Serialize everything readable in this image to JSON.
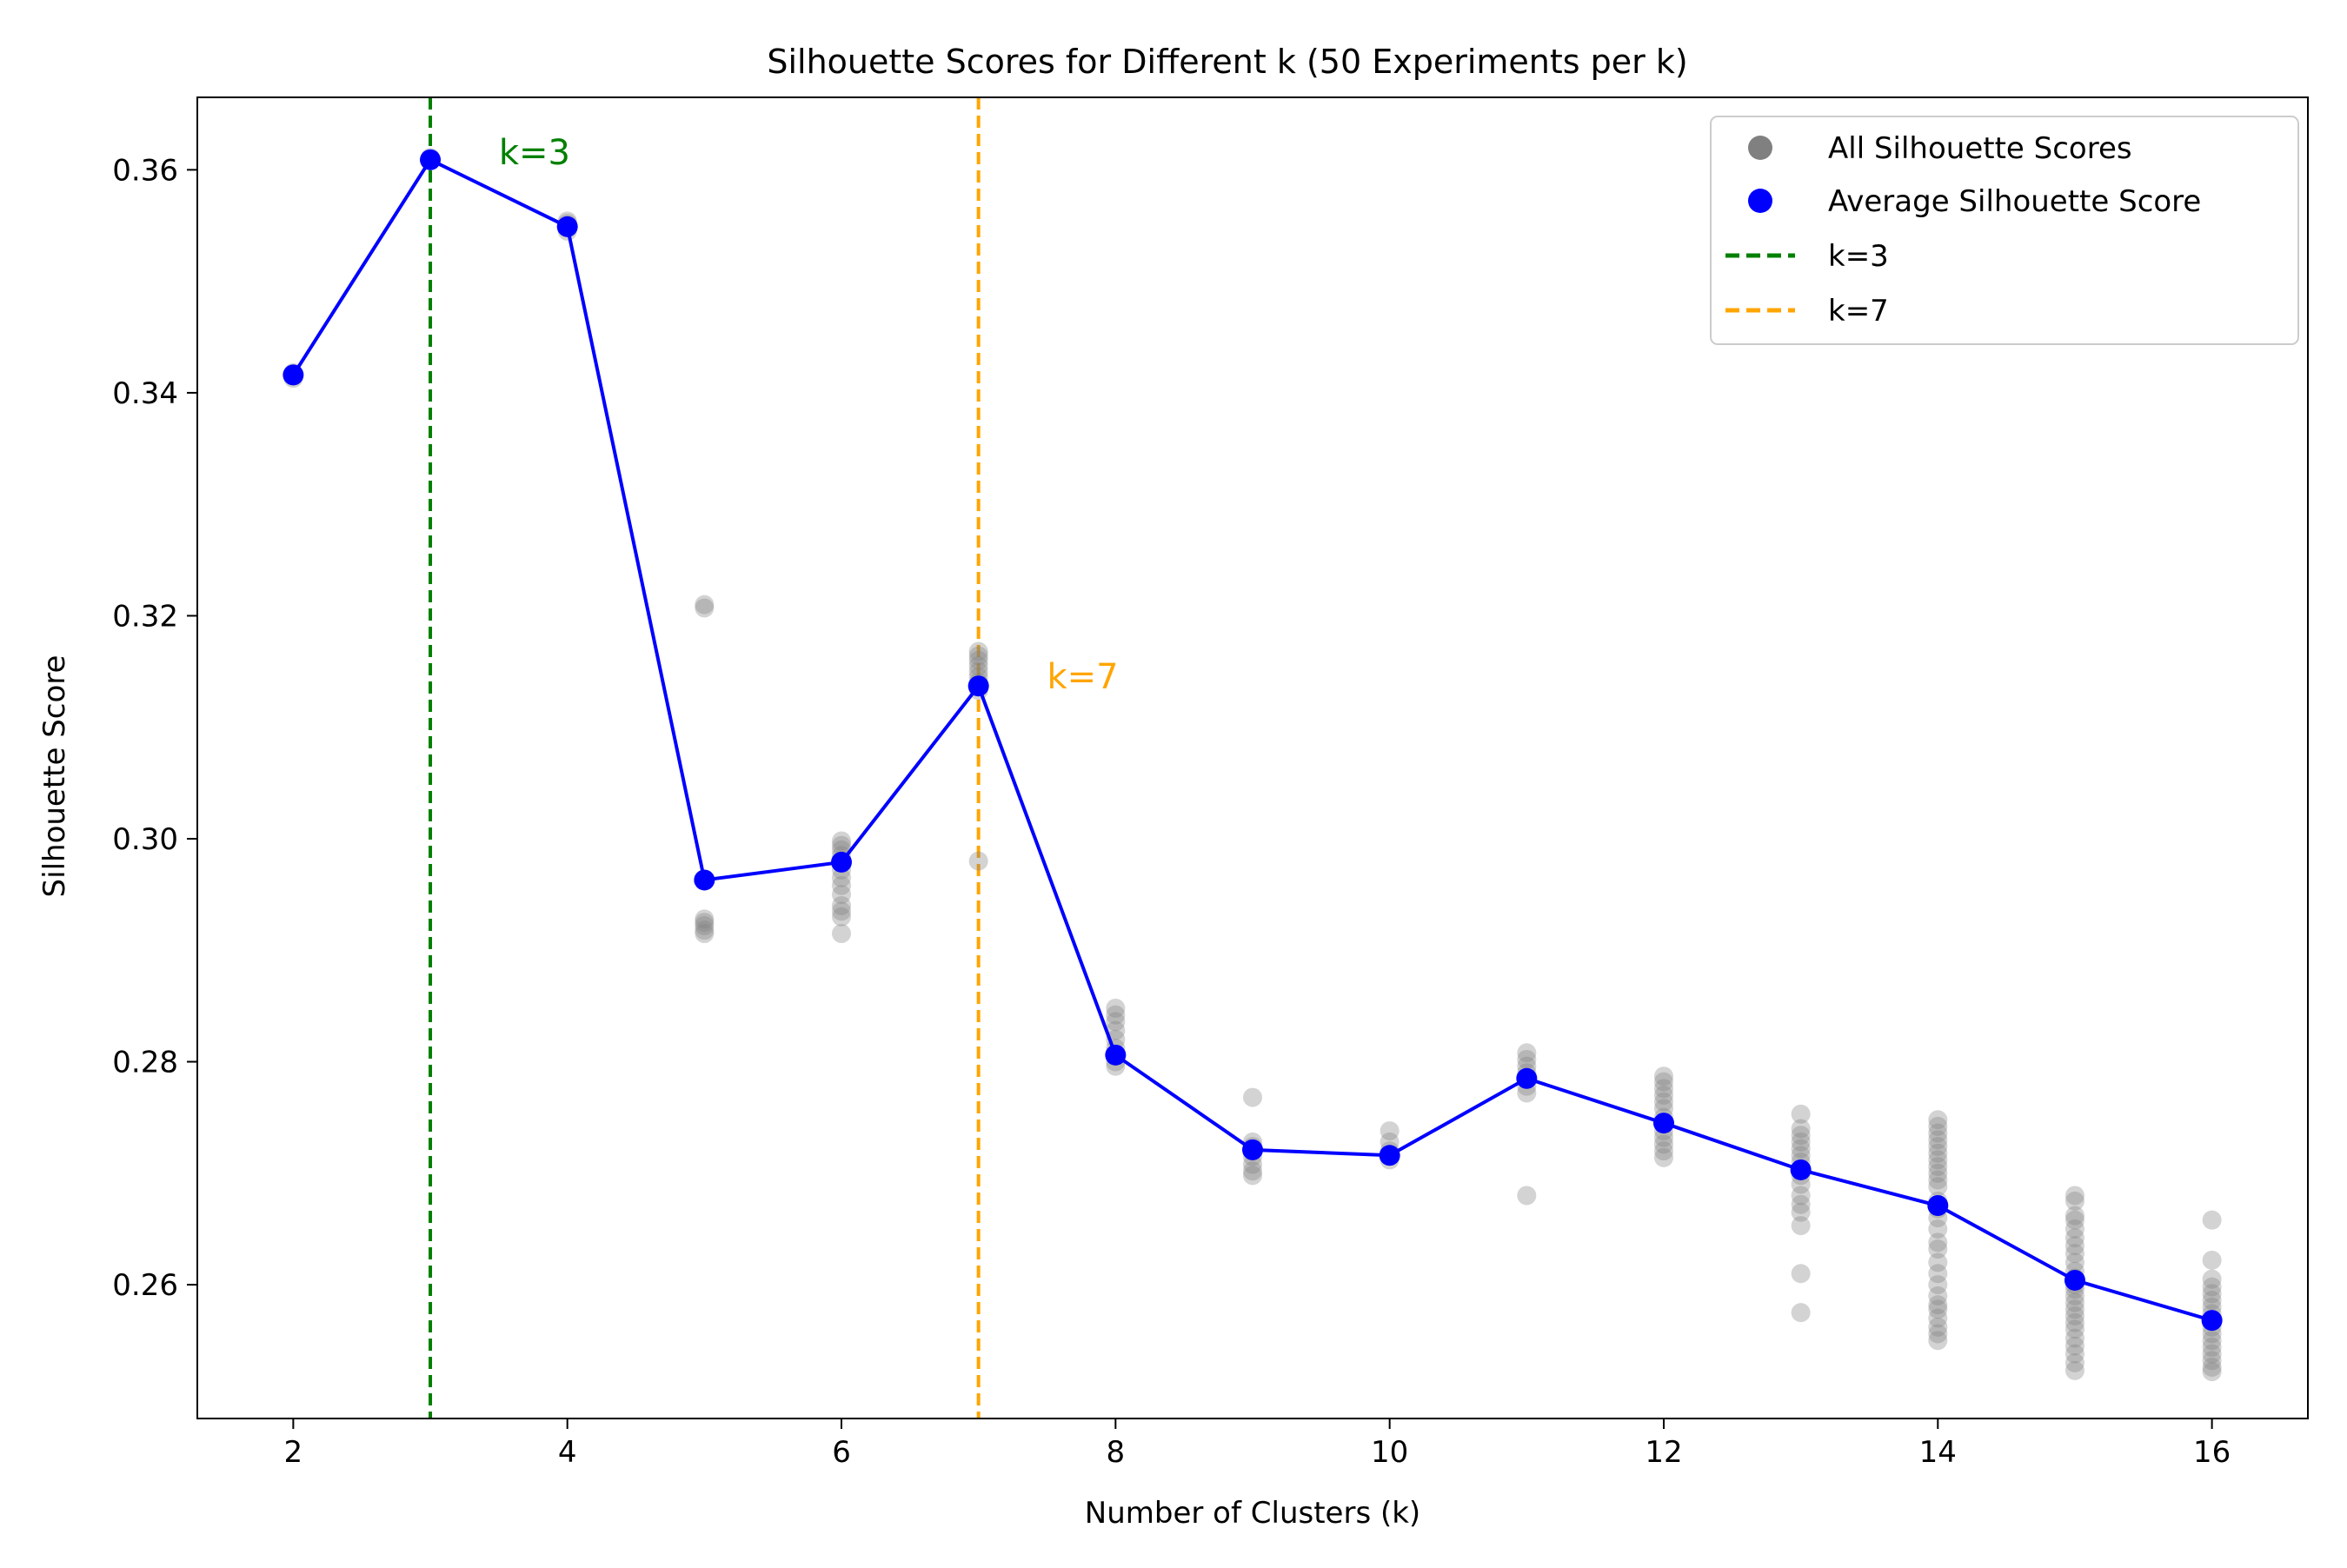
{
  "chart_data": {
    "type": "scatter",
    "title": "Silhouette Scores for Different k (50 Experiments per k)",
    "xlabel": "Number of Clusters (k)",
    "ylabel": "Silhouette Score",
    "xlim": [
      1.3,
      16.7
    ],
    "ylim": [
      0.248,
      0.3665
    ],
    "xticks": [
      2,
      4,
      6,
      8,
      10,
      12,
      14,
      16
    ],
    "yticks": [
      0.26,
      0.28,
      0.3,
      0.32,
      0.34,
      0.36
    ],
    "ytick_labels": [
      "0.26",
      "0.28",
      "0.30",
      "0.32",
      "0.34",
      "0.36"
    ],
    "grid": false,
    "legend_position": "top-right",
    "colors": {
      "all": "#808080",
      "average": "#0000ff",
      "k3": "#008000",
      "k7": "#ffa500"
    },
    "series": [
      {
        "name": "All Silhouette Scores",
        "kind": "scatter",
        "points": [
          {
            "x": 2,
            "y": [
              0.3413,
              0.3415,
              0.3417,
              0.3418
            ]
          },
          {
            "x": 3,
            "y": [
              0.3608,
              0.3609,
              0.3611
            ]
          },
          {
            "x": 4,
            "y": [
              0.3545,
              0.3548,
              0.355,
              0.3552,
              0.3554
            ]
          },
          {
            "x": 5,
            "y": [
              0.3207,
              0.321,
              0.2962,
              0.2928,
              0.2925,
              0.2922,
              0.2918,
              0.2915
            ]
          },
          {
            "x": 6,
            "y": [
              0.2998,
              0.2994,
              0.299,
              0.2985,
              0.298,
              0.2972,
              0.2965,
              0.2958,
              0.295,
              0.294,
              0.2935,
              0.293,
              0.2915
            ]
          },
          {
            "x": 7,
            "y": [
              0.3168,
              0.3164,
              0.316,
              0.3155,
              0.315,
              0.3145,
              0.314,
              0.3137,
              0.3133,
              0.298
            ]
          },
          {
            "x": 8,
            "y": [
              0.2848,
              0.2842,
              0.2836,
              0.2828,
              0.282,
              0.2812,
              0.2805,
              0.28,
              0.2796
            ]
          },
          {
            "x": 9,
            "y": [
              0.2768,
              0.2728,
              0.2724,
              0.272,
              0.2715,
              0.2708,
              0.2702,
              0.2698
            ]
          },
          {
            "x": 10,
            "y": [
              0.2738,
              0.2728,
              0.272,
              0.2716,
              0.2712
            ]
          },
          {
            "x": 11,
            "y": [
              0.2808,
              0.2802,
              0.2796,
              0.279,
              0.2784,
              0.2778,
              0.2772,
              0.268
            ]
          },
          {
            "x": 12,
            "y": [
              0.2787,
              0.2782,
              0.2776,
              0.277,
              0.2764,
              0.2758,
              0.275,
              0.2744,
              0.2738,
              0.2732,
              0.2726,
              0.272,
              0.2714
            ]
          },
          {
            "x": 13,
            "y": [
              0.2753,
              0.274,
              0.2734,
              0.2728,
              0.2722,
              0.2716,
              0.271,
              0.2704,
              0.2698,
              0.269,
              0.268,
              0.2672,
              0.2665,
              0.2653,
              0.261,
              0.2575
            ]
          },
          {
            "x": 14,
            "y": [
              0.2748,
              0.2742,
              0.2736,
              0.273,
              0.2724,
              0.2718,
              0.2712,
              0.2706,
              0.27,
              0.2694,
              0.2688,
              0.2675,
              0.2668,
              0.266,
              0.265,
              0.2638,
              0.2632,
              0.262,
              0.261,
              0.26,
              0.259,
              0.2582,
              0.2578,
              0.257,
              0.2562,
              0.2556,
              0.255
            ]
          },
          {
            "x": 15,
            "y": [
              0.268,
              0.2675,
              0.2662,
              0.2658,
              0.265,
              0.2642,
              0.2635,
              0.2628,
              0.262,
              0.2612,
              0.2606,
              0.26,
              0.2596,
              0.259,
              0.2584,
              0.2578,
              0.2572,
              0.2566,
              0.256,
              0.2552,
              0.2545,
              0.2538,
              0.253,
              0.2523
            ]
          },
          {
            "x": 16,
            "y": [
              0.2658,
              0.2622,
              0.2605,
              0.2598,
              0.2592,
              0.2586,
              0.258,
              0.2574,
              0.2568,
              0.2562,
              0.2556,
              0.255,
              0.2544,
              0.2538,
              0.2532,
              0.2526,
              0.2522
            ]
          }
        ]
      },
      {
        "name": "Average Silhouette Score",
        "kind": "line",
        "x": [
          2,
          3,
          4,
          5,
          6,
          7,
          8,
          9,
          10,
          11,
          12,
          13,
          14,
          15,
          16
        ],
        "y": [
          0.3416,
          0.3609,
          0.3549,
          0.2963,
          0.2979,
          0.3137,
          0.2806,
          0.2721,
          0.2716,
          0.2785,
          0.2745,
          0.2703,
          0.2671,
          0.2604,
          0.2568
        ]
      }
    ],
    "reference_lines": [
      {
        "name": "k=3",
        "x": 3,
        "label": "k=3",
        "label_x": 3.5,
        "label_y": 0.3605,
        "color": "#008000"
      },
      {
        "name": "k=7",
        "x": 7,
        "label": "k=7",
        "label_x": 7.5,
        "label_y": 0.3135,
        "color": "#ffa500"
      }
    ]
  }
}
